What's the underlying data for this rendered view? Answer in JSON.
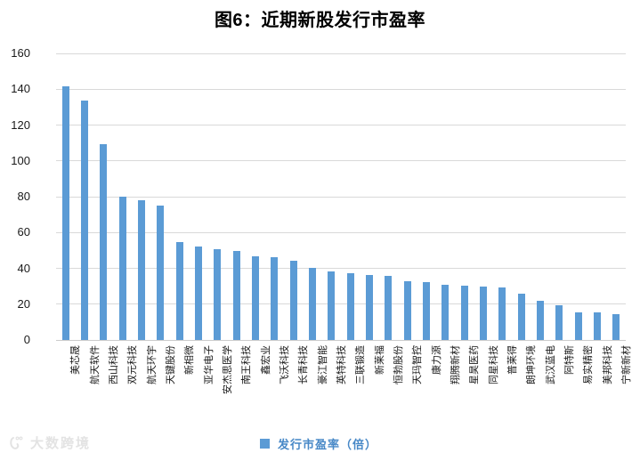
{
  "chart_data": {
    "type": "bar",
    "title": "图6：近期新股发行市盈率",
    "legend": "发行市盈率（倍）",
    "legend_position": "bottom",
    "grid": "horizontal",
    "xlabel": "",
    "ylabel": "",
    "ylim": [
      0,
      160
    ],
    "y_ticks": [
      160,
      140,
      120,
      100,
      80,
      60,
      40,
      20,
      0
    ],
    "categories": [
      "美芯晟",
      "航天软件",
      "西山科技",
      "双元科技",
      "航天环宇",
      "天键股份",
      "新相微",
      "亚华电子",
      "安杰思医学",
      "南王科技",
      "鑫宏业",
      "飞沃科技",
      "长青科技",
      "豪江智能",
      "英特科技",
      "三联锻造",
      "新莱福",
      "恒勃股份",
      "天玛智控",
      "康力源",
      "翔腾新材",
      "星昊医药",
      "同星科技",
      "普莱得",
      "朗坤环境",
      "武汉蓝电",
      "阿特斯",
      "易实精密",
      "美邦科技",
      "宁新新材"
    ],
    "values": [
      141.8,
      133.9,
      109.1,
      80.0,
      77.8,
      75.2,
      54.7,
      52.2,
      50.9,
      49.8,
      46.5,
      46.4,
      44.2,
      40.4,
      38.5,
      37.4,
      36.2,
      36.0,
      33.0,
      32.1,
      31.0,
      30.3,
      29.8,
      29.3,
      25.9,
      21.7,
      19.3,
      15.5,
      15.5,
      14.3
    ]
  },
  "colors": {
    "bar": "#5B9BD5",
    "grid": "#D9D9D9",
    "zero_axis": "#CCCCCC",
    "axis_text": "#1A1A1A",
    "legend_text": "#4788C7",
    "watermark": "#E3E3E3"
  },
  "watermark": {
    "text": "大数跨境"
  }
}
